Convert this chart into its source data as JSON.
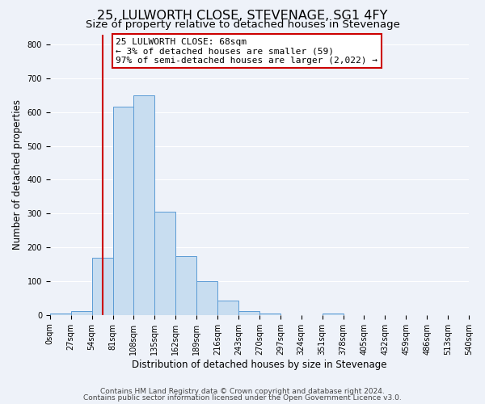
{
  "title": "25, LULWORTH CLOSE, STEVENAGE, SG1 4FY",
  "subtitle": "Size of property relative to detached houses in Stevenage",
  "xlabel": "Distribution of detached houses by size in Stevenage",
  "ylabel": "Number of detached properties",
  "bin_edges": [
    0,
    27,
    54,
    81,
    108,
    135,
    162,
    189,
    216,
    243,
    270,
    297,
    324,
    351,
    378,
    405,
    432,
    459,
    486,
    513,
    540
  ],
  "bar_heights": [
    5,
    12,
    170,
    615,
    650,
    305,
    175,
    100,
    42,
    12,
    5,
    0,
    0,
    4,
    0,
    0,
    0,
    0,
    0,
    0
  ],
  "bar_face_color": "#c8ddf0",
  "bar_edge_color": "#5b9bd5",
  "property_line_x": 68,
  "property_line_color": "#cc0000",
  "annotation_text": "25 LULWORTH CLOSE: 68sqm\n← 3% of detached houses are smaller (59)\n97% of semi-detached houses are larger (2,022) →",
  "annotation_box_facecolor": "#ffffff",
  "annotation_box_edgecolor": "#cc0000",
  "ylim": [
    0,
    830
  ],
  "yticks": [
    0,
    100,
    200,
    300,
    400,
    500,
    600,
    700,
    800
  ],
  "footer_line1": "Contains HM Land Registry data © Crown copyright and database right 2024.",
  "footer_line2": "Contains public sector information licensed under the Open Government Licence v3.0.",
  "background_color": "#eef2f9",
  "grid_color": "#ffffff",
  "title_fontsize": 11.5,
  "subtitle_fontsize": 9.5,
  "axis_label_fontsize": 8.5,
  "tick_fontsize": 7,
  "annotation_fontsize": 8,
  "footer_fontsize": 6.5
}
